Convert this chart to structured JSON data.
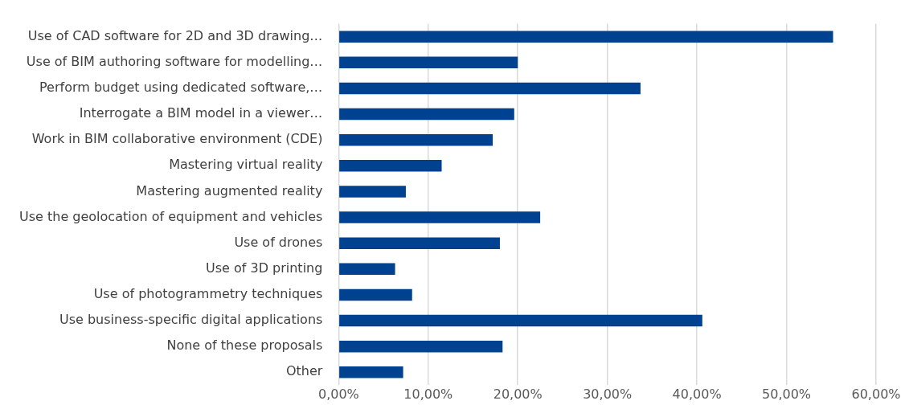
{
  "chart_data": {
    "type": "bar",
    "orientation": "horizontal",
    "categories": [
      "Use of CAD software for 2D and 3D drawing…",
      "Use of BIM authoring software for modelling…",
      "Perform budget using dedicated software,…",
      "Interrogate a BIM model in a viewer…",
      "Work in BIM collaborative environment (CDE)",
      "Mastering virtual reality",
      "Mastering augmented reality",
      "Use the geolocation of equipment and vehicles",
      "Use of drones",
      "Use of 3D printing",
      "Use of photogrammetry techniques",
      "Use business-specific digital applications",
      "None of these proposals",
      "Other"
    ],
    "values": [
      55.2,
      20.0,
      33.7,
      19.6,
      17.2,
      11.5,
      7.5,
      22.5,
      18.0,
      6.3,
      8.2,
      40.6,
      18.3,
      7.2
    ],
    "color": "#00428f",
    "xlim": [
      0,
      60
    ],
    "xticks": [
      {
        "value": 0,
        "label": "0,00%"
      },
      {
        "value": 10,
        "label": "10,00%"
      },
      {
        "value": 20,
        "label": "20,00%"
      },
      {
        "value": 30,
        "label": "30,00%"
      },
      {
        "value": 40,
        "label": "40,00%"
      },
      {
        "value": 50,
        "label": "50,00%"
      },
      {
        "value": 60,
        "label": "60,00%"
      }
    ],
    "grid": "x"
  }
}
